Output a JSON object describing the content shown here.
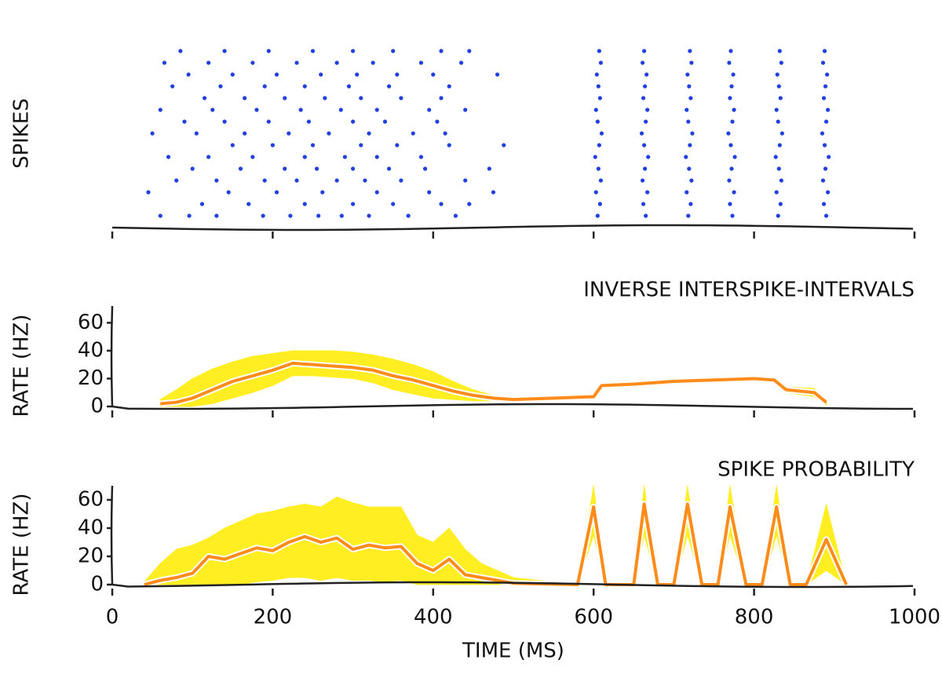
{
  "chart_data": [
    {
      "type": "scatter",
      "ylabel": "SPIKES",
      "color": "#2040e0",
      "xlim": [
        0,
        1000
      ],
      "ylim": [
        0,
        16
      ],
      "x": [
        60,
        96,
        130,
        188,
        222,
        257,
        286,
        320,
        369,
        428,
        112,
        170,
        240,
        300,
        350,
        410,
        445,
        45,
        145,
        205,
        262,
        330,
        395,
        475,
        80,
        130,
        190,
        230,
        280,
        315,
        360,
        440,
        100,
        160,
        215,
        255,
        300,
        345,
        390,
        470,
        70,
        120,
        175,
        240,
        290,
        330,
        385,
        150,
        200,
        250,
        310,
        355,
        420,
        488,
        50,
        105,
        165,
        220,
        270,
        320,
        375,
        415,
        90,
        140,
        195,
        245,
        300,
        340,
        405,
        60,
        125,
        180,
        235,
        285,
        330,
        395,
        440,
        115,
        165,
        215,
        265,
        310,
        360,
        410,
        75,
        135,
        190,
        240,
        295,
        345,
        420,
        95,
        150,
        205,
        260,
        305,
        355,
        400,
        480,
        65,
        120,
        175,
        230,
        280,
        325,
        385,
        435,
        85,
        140,
        195,
        250,
        300,
        350,
        410,
        445,
        605,
        665,
        718,
        773,
        830,
        890,
        608,
        662,
        721,
        770,
        833,
        887,
        603,
        667,
        716,
        775,
        828,
        892,
        609,
        661,
        722,
        769,
        834,
        886,
        606,
        664,
        719,
        772,
        831,
        889,
        602,
        668,
        715,
        776,
        827,
        893,
        607,
        663,
        720,
        771,
        832,
        888,
        610,
        660,
        723,
        768,
        835,
        885,
        605,
        665,
        718,
        773,
        830,
        890,
        603,
        667,
        716,
        775,
        828,
        892,
        608,
        662,
        721,
        770,
        833,
        887,
        606,
        664,
        719,
        772,
        831,
        889,
        604,
        666,
        717,
        774,
        829,
        891,
        609,
        661,
        722,
        769,
        834,
        886,
        607,
        663,
        720,
        771,
        832,
        888
      ],
      "y": [
        1,
        1,
        1,
        1,
        1,
        1,
        1,
        1,
        1,
        1,
        2,
        2,
        2,
        2,
        2,
        2,
        2,
        3,
        3,
        3,
        3,
        3,
        3,
        3,
        4,
        4,
        4,
        4,
        4,
        4,
        4,
        4,
        5,
        5,
        5,
        5,
        5,
        5,
        5,
        5,
        6,
        6,
        6,
        6,
        6,
        6,
        6,
        7,
        7,
        7,
        7,
        7,
        7,
        7,
        8,
        8,
        8,
        8,
        8,
        8,
        8,
        8,
        9,
        9,
        9,
        9,
        9,
        9,
        9,
        10,
        10,
        10,
        10,
        10,
        10,
        10,
        10,
        11,
        11,
        11,
        11,
        11,
        11,
        11,
        12,
        12,
        12,
        12,
        12,
        12,
        12,
        13,
        13,
        13,
        13,
        13,
        13,
        13,
        13,
        14,
        14,
        14,
        14,
        14,
        14,
        14,
        14,
        15,
        15,
        15,
        15,
        15,
        15,
        15,
        15,
        1,
        1,
        1,
        1,
        1,
        1,
        2,
        2,
        2,
        2,
        2,
        2,
        3,
        3,
        3,
        3,
        3,
        3,
        4,
        4,
        4,
        4,
        4,
        4,
        5,
        5,
        5,
        5,
        5,
        5,
        6,
        6,
        6,
        6,
        6,
        6,
        7,
        7,
        7,
        7,
        7,
        7,
        8,
        8,
        8,
        8,
        8,
        8,
        9,
        9,
        9,
        9,
        9,
        9,
        10,
        10,
        10,
        10,
        10,
        10,
        11,
        11,
        11,
        11,
        11,
        11,
        12,
        12,
        12,
        12,
        12,
        12,
        13,
        13,
        13,
        13,
        13,
        13,
        14,
        14,
        14,
        14,
        14,
        14,
        15,
        15,
        15,
        15,
        15,
        15
      ]
    },
    {
      "type": "line",
      "title": "INVERSE INTERSPIKE-INTERVALS",
      "ylabel": "RATE (HZ)",
      "color": "#ff8c1a",
      "band_color": "#ffee22",
      "xlim": [
        0,
        1000
      ],
      "ylim": [
        0,
        72
      ],
      "yticks": [
        0,
        20,
        40,
        60
      ],
      "x": [
        60,
        80,
        100,
        125,
        150,
        175,
        200,
        225,
        250,
        275,
        300,
        325,
        350,
        375,
        400,
        425,
        450,
        475,
        500,
        550,
        600,
        610,
        650,
        700,
        750,
        800,
        825,
        840,
        875,
        890
      ],
      "values": [
        2,
        3,
        6,
        12,
        18,
        22,
        26,
        31,
        30,
        29,
        28,
        26,
        22,
        19,
        15,
        11,
        8,
        6,
        5,
        6,
        7,
        15,
        16,
        18,
        19,
        20,
        19,
        12,
        10,
        3
      ],
      "upper": [
        5,
        12,
        20,
        27,
        32,
        36,
        38,
        40,
        40,
        40,
        39,
        37,
        34,
        30,
        25,
        18,
        12,
        8,
        6,
        7,
        8,
        17,
        18,
        20,
        21,
        22,
        21,
        14,
        13,
        5
      ],
      "lower": [
        0,
        0,
        0,
        2,
        6,
        10,
        15,
        22,
        22,
        21,
        20,
        17,
        12,
        9,
        6,
        5,
        4,
        4,
        4,
        5,
        6,
        13,
        14,
        16,
        17,
        18,
        17,
        10,
        7,
        1
      ]
    },
    {
      "type": "line",
      "title": "SPIKE PROBABILITY",
      "ylabel": "RATE (HZ)",
      "xlabel": "TIME (MS)",
      "color": "#ff8c1a",
      "band_color": "#ffee22",
      "xlim": [
        0,
        1000
      ],
      "ylim": [
        0,
        70
      ],
      "yticks": [
        0,
        20,
        40,
        60
      ],
      "xticks": [
        0,
        200,
        400,
        600,
        800,
        1000
      ],
      "x": [
        40,
        60,
        80,
        100,
        120,
        140,
        160,
        180,
        200,
        220,
        240,
        260,
        280,
        300,
        320,
        340,
        360,
        380,
        400,
        420,
        440,
        460,
        480,
        500,
        580,
        600,
        615,
        630,
        650,
        663,
        680,
        700,
        717,
        735,
        755,
        770,
        790,
        810,
        828,
        845,
        865,
        890,
        915
      ],
      "values": [
        0,
        3,
        5,
        8,
        20,
        18,
        22,
        26,
        24,
        30,
        34,
        30,
        33,
        25,
        28,
        26,
        27,
        15,
        10,
        18,
        7,
        5,
        3,
        1,
        0,
        55,
        0,
        0,
        0,
        57,
        0,
        0,
        57,
        0,
        0,
        55,
        0,
        0,
        55,
        0,
        0,
        32,
        0
      ],
      "upper": [
        2,
        15,
        25,
        28,
        33,
        40,
        45,
        50,
        52,
        55,
        57,
        55,
        62,
        58,
        55,
        55,
        55,
        35,
        30,
        40,
        25,
        15,
        10,
        5,
        0,
        70,
        0,
        0,
        0,
        70,
        0,
        0,
        70,
        0,
        0,
        70,
        0,
        0,
        70,
        0,
        0,
        57,
        0
      ],
      "lower": [
        0,
        0,
        0,
        0,
        0,
        0,
        0,
        2,
        3,
        5,
        5,
        3,
        5,
        3,
        3,
        2,
        3,
        0,
        0,
        0,
        0,
        0,
        0,
        0,
        0,
        35,
        0,
        0,
        0,
        35,
        0,
        0,
        35,
        0,
        0,
        35,
        0,
        0,
        35,
        0,
        0,
        10,
        0
      ]
    }
  ]
}
